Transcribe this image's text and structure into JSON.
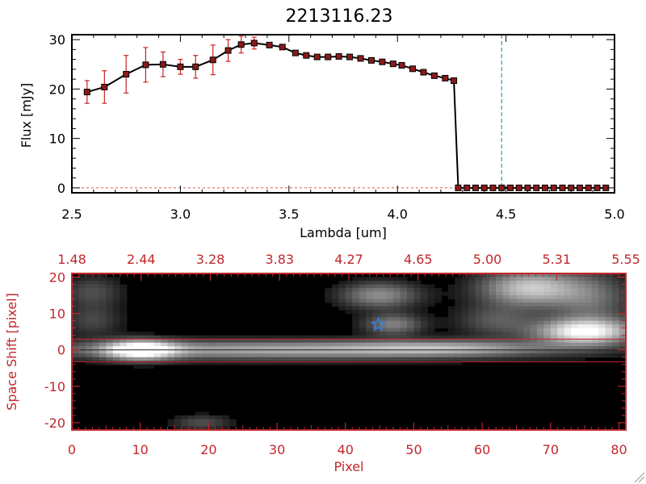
{
  "title": "2213116.23",
  "colors": {
    "axis_black": "#000000",
    "axis_red": "#c0282d",
    "marker": "#8b1a1a",
    "errorbar": "#cc2222",
    "dashed_line": "#3399bb",
    "star": "#2f7fe0"
  },
  "chart_data": [
    {
      "type": "line",
      "xlabel": "Lambda [um]",
      "ylabel": "Flux [mJy]",
      "xlim": [
        2.5,
        5.0
      ],
      "ylim": [
        -1,
        31
      ],
      "xticks": [
        "2.5",
        "3.0",
        "3.5",
        "4.0",
        "4.5",
        "5.0"
      ],
      "yticks": [
        "0",
        "10",
        "20",
        "30"
      ],
      "vline_x": 4.48,
      "series": [
        {
          "x": [
            2.57,
            2.65,
            2.75,
            2.84,
            2.92,
            3.0,
            3.07,
            3.15,
            3.22,
            3.28,
            3.34,
            3.41,
            3.47,
            3.53,
            3.58,
            3.63,
            3.68,
            3.73,
            3.78,
            3.83,
            3.88,
            3.93,
            3.98,
            4.02,
            4.07,
            4.12,
            4.17,
            4.22,
            4.26,
            4.28,
            4.32,
            4.36,
            4.4,
            4.44,
            4.48,
            4.52,
            4.56,
            4.6,
            4.64,
            4.68,
            4.72,
            4.76,
            4.8,
            4.84,
            4.88,
            4.92,
            4.96
          ],
          "y": [
            19.4,
            20.4,
            23.0,
            24.9,
            25.0,
            24.5,
            24.5,
            25.9,
            27.8,
            29.0,
            29.3,
            28.9,
            28.5,
            27.3,
            26.8,
            26.5,
            26.5,
            26.6,
            26.5,
            26.2,
            25.8,
            25.5,
            25.1,
            24.8,
            24.1,
            23.4,
            22.7,
            22.2,
            21.7,
            0,
            0,
            0,
            0,
            0,
            0,
            0,
            0,
            0,
            0,
            0,
            0,
            0,
            0,
            0,
            0,
            0,
            0
          ],
          "yerr": [
            2.3,
            3.3,
            3.8,
            3.5,
            2.5,
            1.5,
            2.3,
            3.0,
            2.2,
            1.7,
            1.2,
            0.5,
            0.4,
            0.4,
            0.3,
            0.3,
            0.3,
            0.3,
            0.3,
            0.3,
            0.3,
            0.3,
            0.3,
            0.3,
            0.3,
            0.3,
            0.3,
            0.3,
            0.3,
            0,
            0,
            0,
            0,
            0,
            0,
            0,
            0,
            0,
            0,
            0,
            0,
            0,
            0,
            0,
            0,
            0,
            0
          ]
        }
      ]
    },
    {
      "type": "heatmap",
      "xlabel": "Pixel",
      "ylabel": "Space Shift [pixel]",
      "xlim": [
        0,
        81
      ],
      "ylim": [
        -22,
        21
      ],
      "xticks": [
        "0",
        "10",
        "20",
        "30",
        "40",
        "50",
        "60",
        "70",
        "80"
      ],
      "yticks": [
        "20",
        "10",
        "0",
        "-10",
        "-20"
      ],
      "top_ticks": [
        "1.48",
        "2.44",
        "3.28",
        "3.83",
        "4.27",
        "4.65",
        "5.00",
        "5.31",
        "5.55"
      ],
      "hlines_y": [
        3,
        -3.3
      ],
      "star": {
        "x": 44.8,
        "y": 7
      },
      "sources": [
        {
          "x": 10,
          "y": 0,
          "sx": 3.5,
          "sy": 1.8,
          "a": 1.0
        },
        {
          "x": 30,
          "y": 0,
          "sx": 24,
          "sy": 1.8,
          "a": 0.62
        },
        {
          "x": 55,
          "y": 0.5,
          "sx": 10,
          "sy": 1.5,
          "a": 0.38
        },
        {
          "x": 45,
          "y": 15,
          "sx": 4,
          "sy": 2.5,
          "a": 0.5
        },
        {
          "x": 47,
          "y": 7,
          "sx": 3,
          "sy": 2,
          "a": 0.45
        },
        {
          "x": 67,
          "y": 17,
          "sx": 5,
          "sy": 3.5,
          "a": 0.75
        },
        {
          "x": 75,
          "y": 5,
          "sx": 5,
          "sy": 2.5,
          "a": 1.0
        },
        {
          "x": 76,
          "y": 14,
          "sx": 4,
          "sy": 5,
          "a": 0.35
        },
        {
          "x": 3,
          "y": 16,
          "sx": 3,
          "sy": 3,
          "a": 0.25
        },
        {
          "x": 3,
          "y": 8,
          "sx": 3,
          "sy": 3,
          "a": 0.22
        },
        {
          "x": 19,
          "y": -20,
          "sx": 3,
          "sy": 1.5,
          "a": 0.25
        },
        {
          "x": 62,
          "y": 8,
          "sx": 4,
          "sy": 3,
          "a": 0.28
        }
      ]
    }
  ]
}
